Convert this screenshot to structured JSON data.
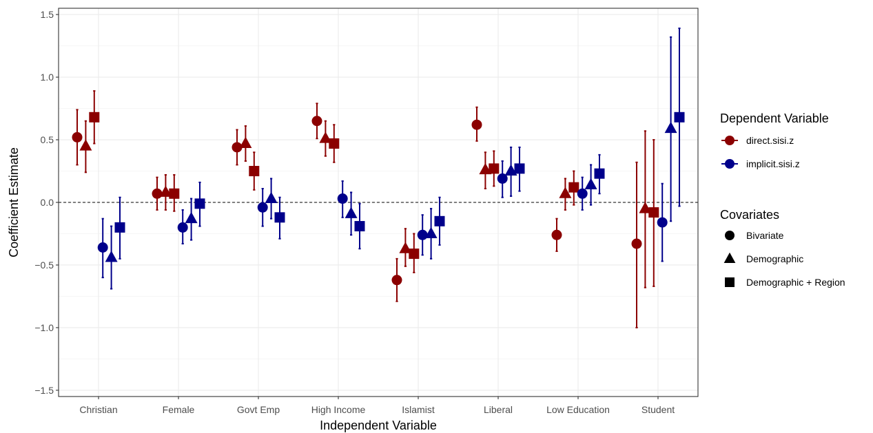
{
  "chart_data": {
    "type": "scatter",
    "subtype": "coefficient-plot-with-error-bars",
    "title": "",
    "xlabel": "Independent Variable",
    "ylabel": "Coefficient Estimate",
    "ylim": [
      -1.55,
      1.55
    ],
    "yticks": [
      -1.5,
      -1.0,
      -0.5,
      0.0,
      0.5,
      1.0,
      1.5
    ],
    "ytick_labels": [
      "−1.5",
      "−1.0",
      "−0.5",
      "0.0",
      "0.5",
      "1.0",
      "1.5"
    ],
    "grid": true,
    "reference_line": {
      "y": 0,
      "style": "dashed"
    },
    "categories": [
      "Christian",
      "Female",
      "Govt Emp",
      "High Income",
      "Islamist",
      "Liberal",
      "Low Education",
      "Student"
    ],
    "colors": {
      "direct.sisi.z": "#8b0000",
      "implicit.sisi.z": "#00008b"
    },
    "series": [
      {
        "dv": "direct.sisi.z",
        "covariates": "Bivariate",
        "values": [
          0.52,
          0.07,
          0.44,
          0.65,
          -0.62,
          0.62,
          -0.26,
          -0.33
        ],
        "lower": [
          0.3,
          -0.06,
          0.3,
          0.51,
          -0.79,
          0.49,
          -0.39,
          -1.0
        ],
        "upper": [
          0.74,
          0.2,
          0.58,
          0.79,
          -0.45,
          0.76,
          -0.13,
          0.32
        ]
      },
      {
        "dv": "direct.sisi.z",
        "covariates": "Demographic",
        "values": [
          0.45,
          0.08,
          0.47,
          0.51,
          -0.37,
          0.26,
          0.07,
          -0.05
        ],
        "lower": [
          0.24,
          -0.06,
          0.33,
          0.37,
          -0.51,
          0.11,
          -0.06,
          -0.68
        ],
        "upper": [
          0.65,
          0.22,
          0.61,
          0.65,
          -0.21,
          0.4,
          0.19,
          0.57
        ]
      },
      {
        "dv": "direct.sisi.z",
        "covariates": "Demographic + Region",
        "values": [
          0.68,
          0.07,
          0.25,
          0.47,
          -0.41,
          0.27,
          0.12,
          -0.08
        ],
        "lower": [
          0.47,
          -0.07,
          0.1,
          0.32,
          -0.56,
          0.13,
          -0.02,
          -0.67
        ],
        "upper": [
          0.89,
          0.22,
          0.4,
          0.62,
          -0.25,
          0.41,
          0.25,
          0.5
        ]
      },
      {
        "dv": "implicit.sisi.z",
        "covariates": "Bivariate",
        "values": [
          -0.36,
          -0.2,
          -0.04,
          0.03,
          -0.26,
          0.19,
          0.07,
          -0.16
        ],
        "lower": [
          -0.6,
          -0.33,
          -0.19,
          -0.12,
          -0.42,
          0.04,
          -0.06,
          -0.47
        ],
        "upper": [
          -0.13,
          -0.06,
          0.11,
          0.17,
          -0.1,
          0.33,
          0.2,
          0.15
        ]
      },
      {
        "dv": "implicit.sisi.z",
        "covariates": "Demographic",
        "values": [
          -0.44,
          -0.13,
          0.03,
          -0.09,
          -0.25,
          0.25,
          0.14,
          0.59
        ],
        "lower": [
          -0.69,
          -0.3,
          -0.13,
          -0.26,
          -0.45,
          0.05,
          -0.02,
          -0.15
        ],
        "upper": [
          -0.19,
          0.03,
          0.19,
          0.08,
          -0.05,
          0.44,
          0.3,
          1.32
        ]
      },
      {
        "dv": "implicit.sisi.z",
        "covariates": "Demographic + Region",
        "values": [
          -0.2,
          -0.01,
          -0.12,
          -0.19,
          -0.15,
          0.27,
          0.23,
          0.68
        ],
        "lower": [
          -0.45,
          -0.19,
          -0.29,
          -0.37,
          -0.34,
          0.09,
          0.07,
          -0.03
        ],
        "upper": [
          0.04,
          0.16,
          0.04,
          -0.01,
          0.04,
          0.44,
          0.38,
          1.39
        ]
      }
    ],
    "legend": {
      "placement": "right",
      "color_title": "Dependent Variable",
      "color_items": [
        "direct.sisi.z",
        "implicit.sisi.z"
      ],
      "shape_title": "Covariates",
      "shape_items": [
        "Bivariate",
        "Demographic",
        "Demographic + Region"
      ],
      "shape_icons": [
        "circle",
        "triangle",
        "square"
      ]
    }
  }
}
